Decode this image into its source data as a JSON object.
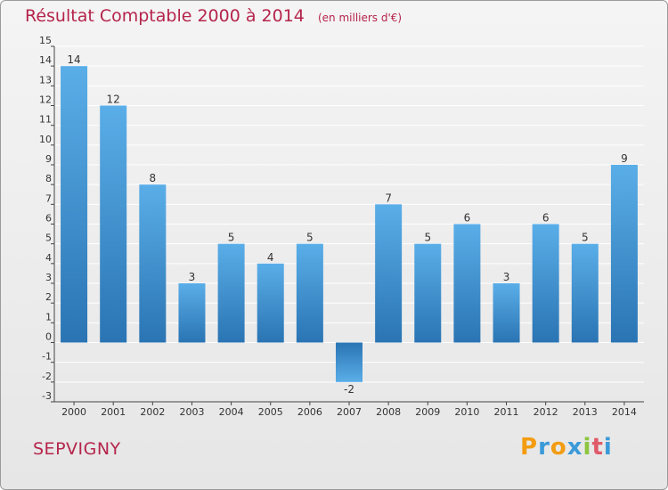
{
  "title": "Résultat Comptable 2000 à 2014",
  "unit_note": "(en milliers d'€)",
  "commune": "SEPVIGNY",
  "logo": {
    "letters": [
      "P",
      "r",
      "o",
      "x",
      "i",
      "t",
      "i"
    ],
    "colors": [
      "#f39c12",
      "#3a9ad9",
      "#f39c12",
      "#3a9ad9",
      "#8cc63f",
      "#e05a6a",
      "#3a9ad9"
    ]
  },
  "colors": {
    "bar_light": "#5aaee8",
    "bar_dark": "#2a74b3",
    "title": "#b5244b",
    "grid": "#ffffff",
    "axis": "#444444"
  },
  "chart_data": {
    "type": "bar",
    "title": "Résultat Comptable 2000 à 2014",
    "ylabel": "en milliers d'€",
    "xlabel": "",
    "categories": [
      "2000",
      "2001",
      "2002",
      "2003",
      "2004",
      "2005",
      "2006",
      "2007",
      "2008",
      "2009",
      "2010",
      "2011",
      "2012",
      "2013",
      "2014"
    ],
    "values": [
      14,
      12,
      8,
      3,
      5,
      4,
      5,
      -2,
      7,
      5,
      6,
      3,
      6,
      5,
      9
    ],
    "ylim": [
      -3,
      15
    ],
    "yticks": [
      -3,
      -2,
      -1,
      0,
      1,
      2,
      3,
      4,
      5,
      6,
      7,
      8,
      9,
      10,
      11,
      12,
      13,
      14,
      15
    ],
    "grid": true
  }
}
